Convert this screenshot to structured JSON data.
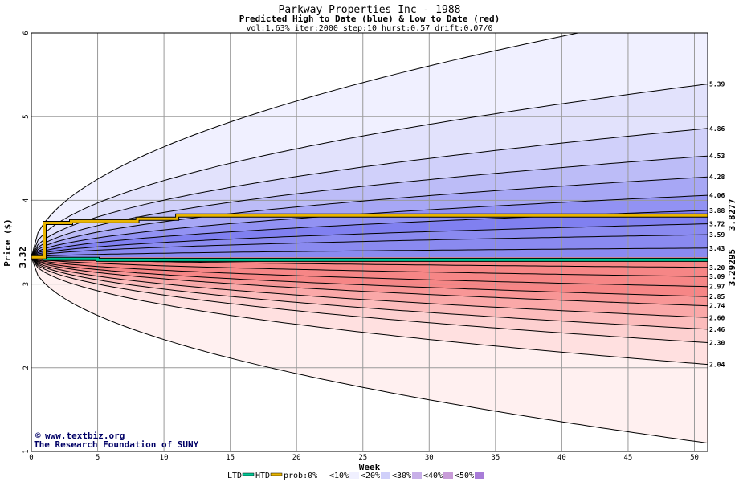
{
  "chart_data": {
    "type": "area",
    "title": "Parkway Properties Inc - 1988",
    "subtitle": "Predicted High to Date (blue) &  Low to Date (red)",
    "params": "vol:1.63% iter:2000 step:10 hurst:0.57 drift:0.07/0",
    "xlabel": "Week",
    "ylabel": "Price ($)",
    "xlim": [
      0,
      51
    ],
    "ylim": [
      1,
      6
    ],
    "x_ticks": [
      0,
      5,
      10,
      15,
      20,
      25,
      30,
      35,
      40,
      45,
      50
    ],
    "y_ticks": [
      1,
      2,
      3,
      4,
      5,
      6
    ],
    "x_tick_labels": [
      "0",
      "5",
      "10",
      "15",
      "20",
      "25",
      "30",
      "35",
      "40",
      "45",
      "50"
    ],
    "y_tick_labels": [
      "1",
      "2",
      "3",
      "4",
      "5",
      "6"
    ],
    "grid": true,
    "start_price": 3.32,
    "start_price_label": "3.32",
    "htd_value": 3.8277,
    "htd_label": "3.8277",
    "ltd_value": 3.29295,
    "ltd_label": "3.29295",
    "high_quantile_ends": [
      5.39,
      4.86,
      4.53,
      4.28,
      4.06,
      3.88,
      3.72,
      3.59,
      3.43
    ],
    "high_quantile_labels": [
      "5.39",
      "4.86",
      "4.53",
      "4.28",
      "4.06",
      "3.88",
      "3.72",
      "3.59",
      "3.43"
    ],
    "high_max_end": 6.3,
    "low_quantile_ends": [
      3.2,
      3.09,
      2.97,
      2.85,
      2.74,
      2.6,
      2.46,
      2.3,
      2.04
    ],
    "low_quantile_labels": [
      "3.20",
      "3.09",
      "2.97",
      "2.85",
      "2.74",
      "2.60",
      "2.46",
      "2.30",
      "2.04"
    ],
    "low_min_end": 1.1,
    "htd_steps": [
      [
        0,
        3.32
      ],
      [
        1,
        3.73
      ],
      [
        3,
        3.75
      ],
      [
        8,
        3.78
      ],
      [
        11,
        3.82
      ],
      [
        51,
        3.83
      ]
    ],
    "ltd_steps": [
      [
        0,
        3.32
      ],
      [
        1,
        3.3
      ],
      [
        5,
        3.29
      ],
      [
        51,
        3.29
      ]
    ],
    "colors": {
      "blue_band": [
        "#f0f0ff",
        "#e2e2fc",
        "#d0d0fa",
        "#bcbcf7",
        "#a7a7f5",
        "#9292f3",
        "#8080f0",
        "#8a8af0"
      ],
      "red_band": [
        "#fff0f0",
        "#ffe0e0",
        "#fdd0d0",
        "#fcbcbc",
        "#faa8a8",
        "#f89696",
        "#f68686"
      ],
      "htd": "#e8b400",
      "ltd": "#00c896"
    },
    "legend": [
      {
        "label": "LTD",
        "kind": "line",
        "color": "#00c896"
      },
      {
        "label": "HTD",
        "kind": "line",
        "color": "#e8b400"
      },
      {
        "label": "prob:0%",
        "kind": "swatch",
        "color": "#ffffff"
      },
      {
        "label": "<10%",
        "kind": "swatch",
        "color": "#f0f0ff"
      },
      {
        "label": "<20%",
        "kind": "swatch",
        "color": "#d0d0fa"
      },
      {
        "label": "<30%",
        "kind": "swatch",
        "color": "#c8b0e8"
      },
      {
        "label": "<40%",
        "kind": "swatch",
        "color": "#c89cd8"
      },
      {
        "label": "<50%",
        "kind": "swatch",
        "color": "#a87cd8"
      }
    ]
  },
  "credit": {
    "site": "www.textbiz.org",
    "org": "The Research Foundation of SUNY"
  }
}
